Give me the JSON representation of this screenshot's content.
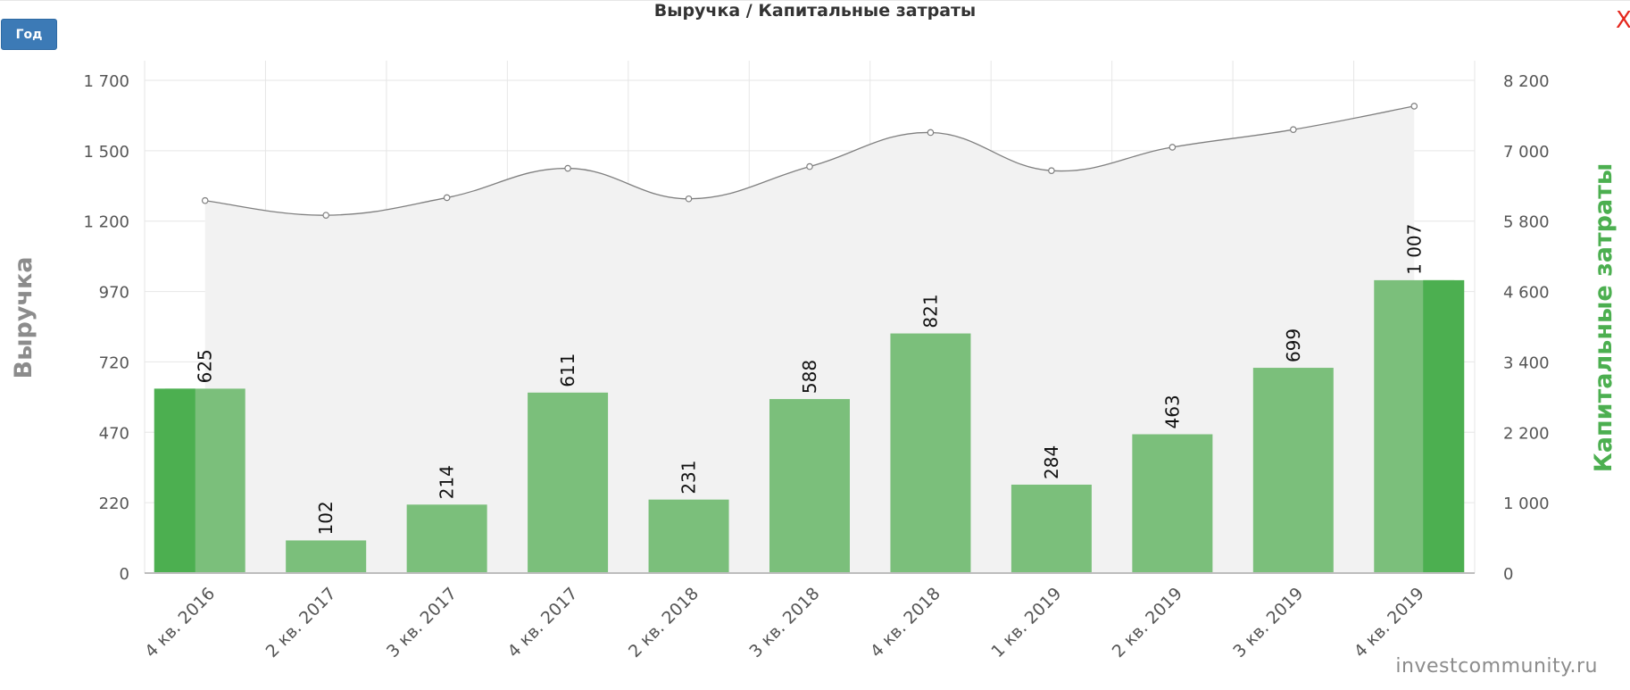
{
  "ui": {
    "period_button": "Год",
    "close_symbol": "X",
    "watermark": "investcommunity.ru"
  },
  "colors": {
    "revenue_bar": "#4caf50",
    "capex_bar": "#7bbf7b",
    "line": "#7f7f7f",
    "area": "#f2f2f2",
    "capex_title": "#4caf50",
    "revenue_title": "#8c8c8c",
    "button": "#3c7ab6",
    "close": "#e5271d"
  },
  "chart_data": {
    "type": "bar",
    "title": "Выручка / Капитальные затраты",
    "categories": [
      "4 кв. 2016",
      "2 кв. 2017",
      "3 кв. 2017",
      "4 кв. 2017",
      "2 кв. 2018",
      "3 кв. 2018",
      "4 кв. 2018",
      "1 кв. 2019",
      "2 кв. 2019",
      "3 кв. 2019",
      "4 кв. 2019"
    ],
    "left_axis": {
      "title": "Выручка",
      "ticks": [
        0,
        220,
        470,
        720,
        970,
        1200,
        1500,
        1700
      ],
      "tick_labels": [
        "0",
        "220",
        "470",
        "720",
        "970",
        "1 200",
        "1 500",
        "1 700"
      ]
    },
    "right_axis": {
      "title": "Капитальные затраты",
      "ticks": [
        0,
        1000,
        2200,
        3400,
        4600,
        5800,
        7000,
        8200
      ],
      "tick_labels": [
        "0",
        "1 000",
        "2 200",
        "3 400",
        "4 600",
        "5 800",
        "7 000",
        "8 200"
      ]
    },
    "grid": true,
    "series": [
      {
        "type": "bar",
        "axis": "left",
        "values": [
          625,
          null,
          null,
          null,
          null,
          null,
          null,
          null,
          null,
          null,
          1007
        ]
      },
      {
        "type": "bar",
        "axis": "left",
        "values": [
          625,
          102,
          214,
          611,
          231,
          588,
          821,
          284,
          463,
          699,
          1007
        ],
        "data_labels": [
          "625",
          "102",
          "214",
          "611",
          "231",
          "588",
          "821",
          "284",
          "463",
          "699",
          "1 007"
        ]
      },
      {
        "type": "area",
        "axis": "right",
        "values": [
          6150,
          5900,
          6200,
          6700,
          6180,
          6730,
          7310,
          6660,
          7060,
          7360,
          7760
        ]
      }
    ]
  }
}
